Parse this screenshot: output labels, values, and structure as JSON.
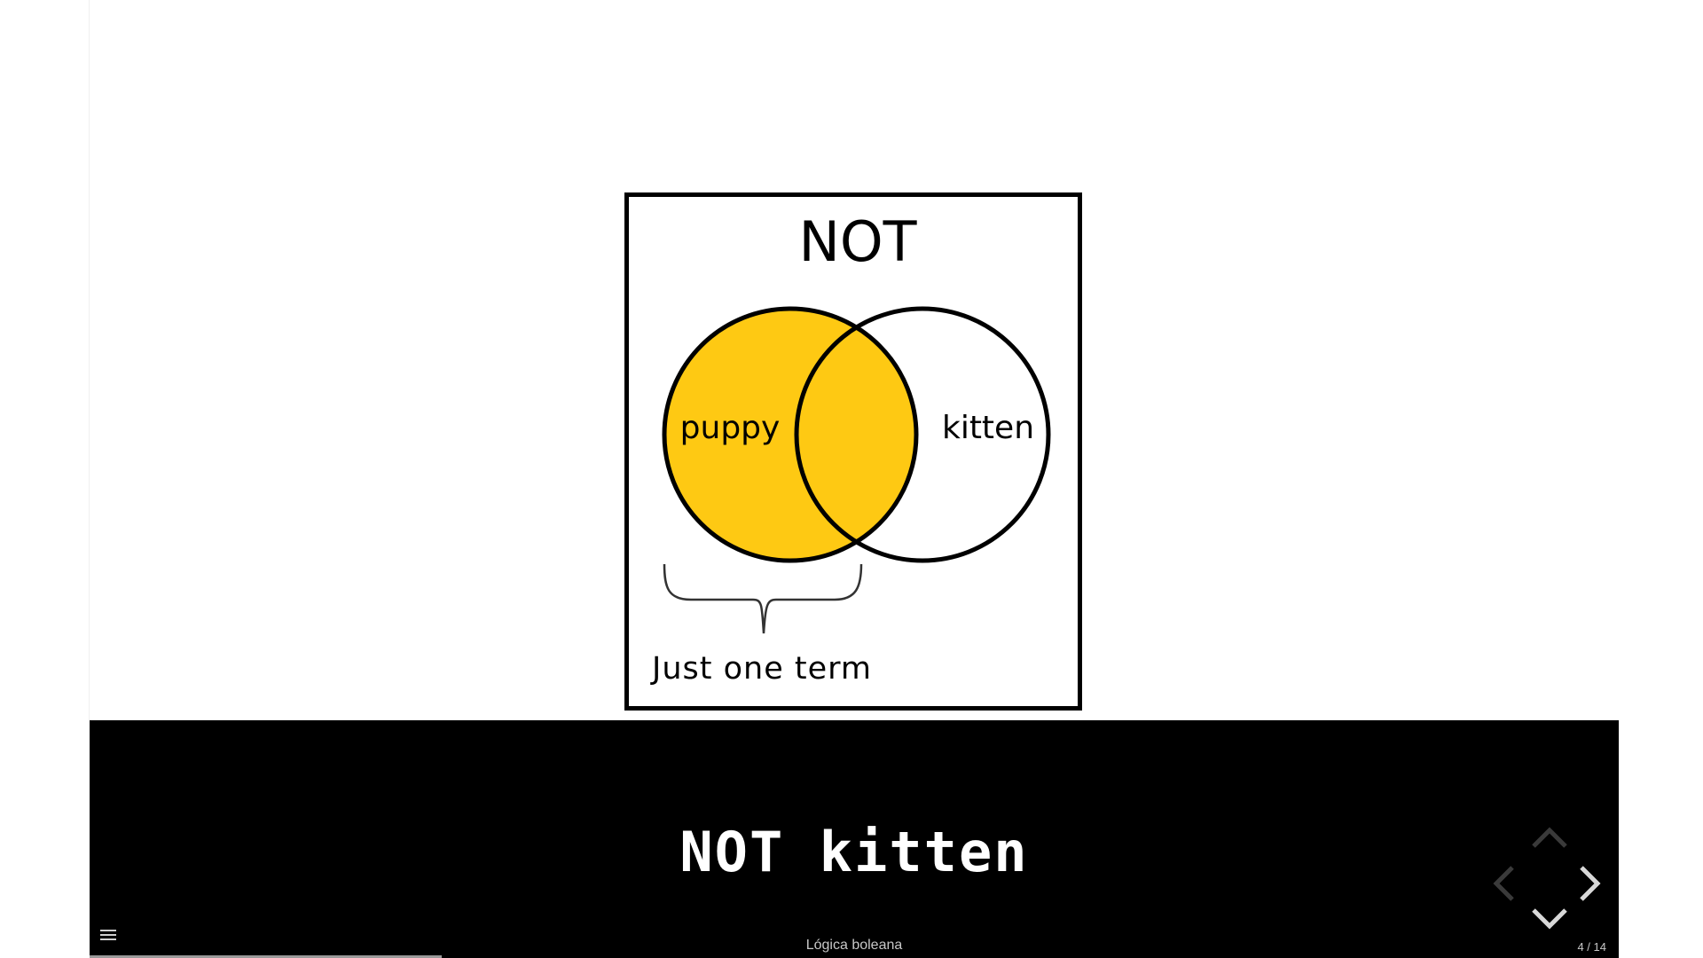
{
  "figure": {
    "title": "NOT",
    "left_circle_label": "puppy",
    "right_circle_label": "kitten",
    "brace_caption": "Just one term",
    "highlight_color": "#FEC913"
  },
  "slide": {
    "caption": "NOT kitten"
  },
  "footer": {
    "presentation_title": "Lógica boleana",
    "slide_number": "4 / 14",
    "progress": 0.23
  },
  "icons": {
    "menu": "hamburger-menu-icon",
    "nav_up": "chevron-up-icon",
    "nav_down": "chevron-down-icon",
    "nav_left": "chevron-left-icon",
    "nav_right": "chevron-right-icon"
  }
}
